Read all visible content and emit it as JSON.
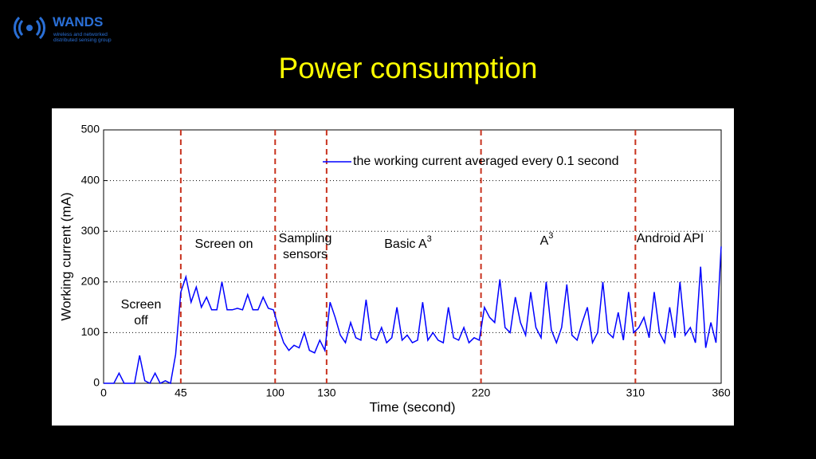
{
  "slide": {
    "logo": {
      "name": "WANDS",
      "tagline": [
        "wireless and networked",
        "distributed sensing group"
      ]
    },
    "title": "Power consumption"
  },
  "chart_data": {
    "type": "line",
    "x_label": "Time (second)",
    "y_label": "Working current (mA)",
    "x": [
      0,
      3,
      6,
      9,
      12,
      15,
      18,
      21,
      24,
      27,
      30,
      33,
      36,
      39,
      42,
      45,
      48,
      51,
      54,
      57,
      60,
      63,
      66,
      69,
      72,
      75,
      78,
      81,
      84,
      87,
      90,
      93,
      96,
      99,
      102,
      105,
      108,
      111,
      114,
      117,
      120,
      123,
      126,
      129,
      132,
      135,
      138,
      141,
      144,
      147,
      150,
      153,
      156,
      159,
      162,
      165,
      168,
      171,
      174,
      177,
      180,
      183,
      186,
      189,
      192,
      195,
      198,
      201,
      204,
      207,
      210,
      213,
      216,
      219,
      222,
      225,
      228,
      231,
      234,
      237,
      240,
      243,
      246,
      249,
      252,
      255,
      258,
      261,
      264,
      267,
      270,
      273,
      276,
      279,
      282,
      285,
      288,
      291,
      294,
      297,
      300,
      303,
      306,
      309,
      312,
      315,
      318,
      321,
      324,
      327,
      330,
      333,
      336,
      339,
      342,
      345,
      348,
      351,
      354,
      357,
      360
    ],
    "series": [
      {
        "name": "the working current averaged every 0.1 second",
        "color": "#0000ff",
        "values": [
          0,
          0,
          0,
          20,
          0,
          0,
          0,
          55,
          5,
          0,
          20,
          0,
          5,
          0,
          57,
          180,
          210,
          160,
          190,
          150,
          170,
          145,
          145,
          200,
          145,
          145,
          148,
          145,
          175,
          145,
          145,
          170,
          148,
          145,
          110,
          80,
          65,
          75,
          70,
          100,
          65,
          60,
          85,
          65,
          160,
          130,
          95,
          80,
          120,
          90,
          85,
          165,
          90,
          85,
          110,
          80,
          90,
          150,
          85,
          95,
          80,
          85,
          160,
          85,
          100,
          85,
          80,
          150,
          90,
          85,
          110,
          80,
          90,
          85,
          150,
          130,
          120,
          205,
          110,
          100,
          170,
          120,
          95,
          180,
          110,
          90,
          200,
          105,
          80,
          110,
          195,
          95,
          85,
          120,
          150,
          80,
          100,
          200,
          100,
          90,
          140,
          85,
          180,
          100,
          110,
          130,
          90,
          180,
          100,
          80,
          150,
          90,
          200,
          95,
          110,
          80,
          230,
          70,
          120,
          80,
          270
        ]
      }
    ],
    "xlim": [
      0,
      360
    ],
    "ylim": [
      0,
      500
    ],
    "xticks": [
      0,
      45,
      100,
      130,
      220,
      310,
      360
    ],
    "yticks": [
      0,
      100,
      200,
      300,
      400,
      500
    ],
    "grid": true,
    "legend": "upper right",
    "dividers": [
      45,
      100,
      130,
      220,
      310
    ],
    "divider_color": "#c8321e",
    "annotations": [
      {
        "lines": [
          "Screen",
          "off"
        ]
      },
      {
        "lines": [
          "Screen on"
        ]
      },
      {
        "lines": [
          "Sampling",
          "sensors"
        ]
      },
      {
        "lines": [
          "Basic A"
        ],
        "sup": "3"
      },
      {
        "lines": [
          "A"
        ],
        "sup": "3"
      },
      {
        "lines": [
          "Android API"
        ]
      }
    ]
  }
}
